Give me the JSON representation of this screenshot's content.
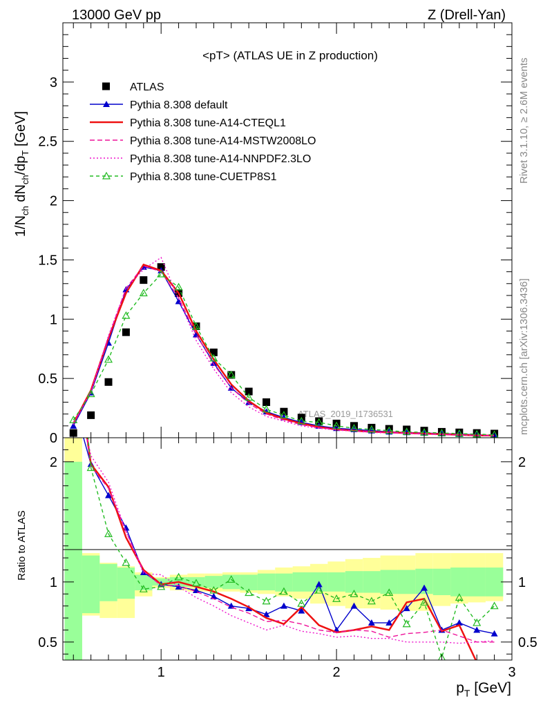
{
  "header": {
    "left": "13000 GeV pp",
    "right": "Z (Drell-Yan)"
  },
  "side_labels": {
    "rivet": "Rivet 3.1.10, ≥ 2.6M events",
    "site": "mcplots.cern.ch [arXiv:1306.3436]"
  },
  "watermark": "ATLAS_2019_I1736531",
  "chart_data": [
    {
      "type": "line",
      "panel": "main",
      "title": "<pT> (ATLAS UE in Z production)",
      "ylabel": "1/N_ch dN_ch/dp_T [GeV]",
      "xlabel": "p_T [GeV]",
      "xlim": [
        0.44,
        3.0
      ],
      "ylim": [
        0,
        3.5
      ],
      "yticks": [
        "0",
        "0.5",
        "1",
        "1.5",
        "2",
        "2.5",
        "3"
      ],
      "xticks": [
        "1",
        "2",
        "3"
      ],
      "legend_position": "top-left",
      "x": [
        0.5,
        0.6,
        0.7,
        0.8,
        0.9,
        1.0,
        1.1,
        1.2,
        1.3,
        1.4,
        1.5,
        1.6,
        1.7,
        1.8,
        1.9,
        2.0,
        2.1,
        2.2,
        2.3,
        2.4,
        2.5,
        2.6,
        2.7,
        2.8,
        2.9
      ],
      "series": [
        {
          "name": "ATLAS",
          "style": "data",
          "color": "#000000",
          "values": [
            0.04,
            0.19,
            0.47,
            0.89,
            1.33,
            1.44,
            1.22,
            0.94,
            0.72,
            0.53,
            0.39,
            0.3,
            0.22,
            0.17,
            0.14,
            0.12,
            0.1,
            0.085,
            0.075,
            0.07,
            0.06,
            0.05,
            0.045,
            0.04,
            0.035
          ]
        },
        {
          "name": "Pythia 8.308 default",
          "style": "solid-tri",
          "color": "#0000cc",
          "values": [
            0.1,
            0.38,
            0.8,
            1.25,
            1.44,
            1.41,
            1.15,
            0.87,
            0.63,
            0.42,
            0.3,
            0.22,
            0.17,
            0.13,
            0.1,
            0.08,
            0.07,
            0.06,
            0.05,
            0.045,
            0.04,
            0.035,
            0.03,
            0.025,
            0.02
          ]
        },
        {
          "name": "Pythia 8.308 tune-A14-CTEQL1",
          "style": "solid-thick",
          "color": "#ee1111",
          "values": [
            0.12,
            0.4,
            0.84,
            1.22,
            1.46,
            1.41,
            1.22,
            0.9,
            0.66,
            0.45,
            0.31,
            0.21,
            0.16,
            0.12,
            0.09,
            0.07,
            0.06,
            0.05,
            0.045,
            0.04,
            0.035,
            0.03,
            0.025,
            0.02,
            0.018
          ]
        },
        {
          "name": "Pythia 8.308 tune-A14-MSTW2008LO",
          "style": "dashed",
          "color": "#ee1199",
          "values": [
            0.12,
            0.39,
            0.85,
            1.26,
            1.45,
            1.4,
            1.18,
            0.87,
            0.62,
            0.42,
            0.29,
            0.2,
            0.15,
            0.11,
            0.085,
            0.07,
            0.06,
            0.05,
            0.045,
            0.04,
            0.035,
            0.03,
            0.025,
            0.02,
            0.018
          ]
        },
        {
          "name": "Pythia 8.308 tune-A14-NNPDF2.3LO",
          "style": "dotted",
          "color": "#ee11cc",
          "values": [
            0.11,
            0.39,
            0.86,
            1.26,
            1.42,
            1.52,
            1.17,
            0.82,
            0.58,
            0.38,
            0.26,
            0.18,
            0.14,
            0.1,
            0.08,
            0.065,
            0.055,
            0.045,
            0.04,
            0.035,
            0.03,
            0.025,
            0.022,
            0.02,
            0.018
          ]
        },
        {
          "name": "Pythia 8.308 tune-CUETP8S1",
          "style": "dashed-opentri",
          "color": "#22bb22",
          "values": [
            0.15,
            0.37,
            0.66,
            1.03,
            1.22,
            1.38,
            1.27,
            0.94,
            0.67,
            0.53,
            0.34,
            0.24,
            0.19,
            0.14,
            0.13,
            0.1,
            0.08,
            0.07,
            0.06,
            0.05,
            0.045,
            0.04,
            0.035,
            0.03,
            0.025
          ]
        }
      ]
    },
    {
      "type": "line",
      "panel": "ratio",
      "ylabel": "Ratio to ATLAS",
      "xlabel": "p_T [GeV]",
      "xlim": [
        0.44,
        3.0
      ],
      "ylim": [
        0.35,
        2.2
      ],
      "yticks": [
        "0.5",
        "1",
        "2"
      ],
      "xticks": [
        "1",
        "2",
        "3"
      ],
      "reference_line": 1,
      "x": [
        0.5,
        0.6,
        0.7,
        0.8,
        0.9,
        1.0,
        1.1,
        1.2,
        1.3,
        1.4,
        1.5,
        1.6,
        1.7,
        1.8,
        1.9,
        2.0,
        2.1,
        2.2,
        2.3,
        2.4,
        2.5,
        2.6,
        2.7,
        2.8,
        2.9
      ],
      "bands": {
        "green_lo": [
          0.2,
          0.74,
          0.84,
          0.86,
          0.93,
          0.97,
          0.96,
          0.96,
          0.95,
          0.94,
          0.93,
          0.93,
          0.92,
          0.92,
          0.92,
          0.92,
          0.91,
          0.91,
          0.9,
          0.9,
          0.9,
          0.89,
          0.88,
          0.88,
          0.88
        ],
        "green_hi": [
          2.0,
          1.22,
          1.15,
          1.12,
          1.06,
          1.03,
          1.04,
          1.04,
          1.05,
          1.06,
          1.06,
          1.07,
          1.07,
          1.08,
          1.08,
          1.08,
          1.09,
          1.09,
          1.1,
          1.1,
          1.11,
          1.11,
          1.12,
          1.12,
          1.12
        ],
        "yellow_lo": [
          0.2,
          0.72,
          0.7,
          0.7,
          0.88,
          0.95,
          0.93,
          0.92,
          0.92,
          0.92,
          0.91,
          0.9,
          0.88,
          0.86,
          0.82,
          0.8,
          0.78,
          0.78,
          0.77,
          0.76,
          0.76,
          0.8,
          0.82,
          0.83,
          0.84
        ],
        "yellow_hi": [
          2.3,
          1.24,
          1.16,
          1.13,
          1.08,
          1.04,
          1.06,
          1.07,
          1.07,
          1.08,
          1.08,
          1.1,
          1.12,
          1.13,
          1.15,
          1.17,
          1.19,
          1.2,
          1.22,
          1.22,
          1.24,
          1.24,
          1.24,
          1.24,
          1.24
        ]
      },
      "series": [
        {
          "name": "Pythia 8.308 default",
          "color": "#0000cc",
          "style": "solid-tri",
          "values": [
            2.5,
            1.98,
            1.72,
            1.45,
            1.08,
            0.98,
            0.96,
            0.93,
            0.88,
            0.8,
            0.78,
            0.73,
            0.8,
            0.76,
            0.98,
            0.6,
            0.8,
            0.66,
            0.66,
            0.78,
            0.95,
            0.6,
            0.66,
            0.6,
            0.57
          ]
        },
        {
          "name": "Pythia 8.308 tune-A14-CTEQL1",
          "color": "#ee1111",
          "style": "solid-thick",
          "values": [
            3.0,
            1.98,
            1.79,
            1.37,
            1.1,
            0.98,
            1.0,
            0.96,
            0.92,
            0.86,
            0.79,
            0.7,
            0.65,
            0.79,
            0.64,
            0.58,
            0.6,
            0.63,
            0.6,
            0.83,
            0.86,
            0.59,
            0.64,
            0.33,
            0.3
          ]
        },
        {
          "name": "Pythia 8.308 tune-A14-MSTW2008LO",
          "color": "#ee1199",
          "style": "dashed",
          "values": [
            3.0,
            1.96,
            1.78,
            1.42,
            1.09,
            0.97,
            0.97,
            0.92,
            0.86,
            0.79,
            0.74,
            0.67,
            0.68,
            0.65,
            0.6,
            0.58,
            0.6,
            0.59,
            0.54,
            0.57,
            0.58,
            0.6,
            0.55,
            0.5,
            0.5
          ]
        },
        {
          "name": "Pythia 8.308 tune-A14-NNPDF2.3LO",
          "color": "#ee11cc",
          "style": "dotted",
          "values": [
            2.75,
            2.05,
            1.83,
            1.42,
            1.07,
            1.06,
            0.96,
            0.87,
            0.8,
            0.72,
            0.66,
            0.6,
            0.64,
            0.59,
            0.57,
            0.54,
            0.55,
            0.53,
            0.53,
            0.5,
            0.5,
            0.5,
            0.49,
            0.5,
            0.51
          ]
        },
        {
          "name": "Pythia 8.308 tune-CUETP8S1",
          "color": "#22bb22",
          "style": "dashed-opentri",
          "values": [
            3.5,
            1.95,
            1.4,
            1.16,
            0.94,
            0.96,
            1.04,
            0.99,
            0.93,
            1.02,
            0.91,
            0.84,
            0.92,
            0.82,
            0.93,
            0.86,
            0.9,
            0.84,
            0.91,
            0.65,
            0.83,
            0.37,
            0.87,
            0.66,
            0.8
          ]
        }
      ]
    }
  ]
}
